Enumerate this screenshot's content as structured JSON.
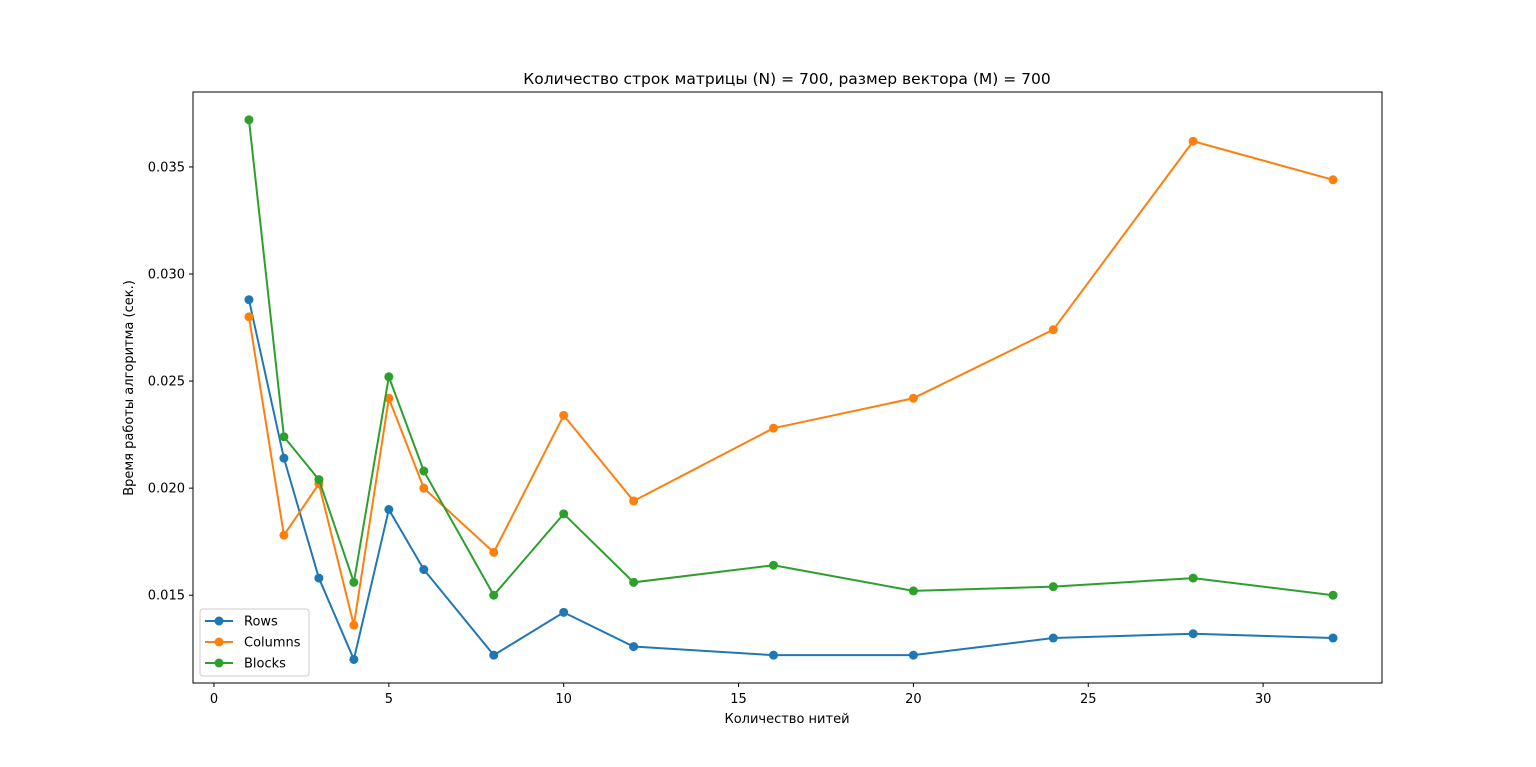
{
  "chart_data": {
    "type": "line",
    "title": "Количество строк матрицы (N) = 700, размер вектора (M) = 700",
    "xlabel": "Количество нитей",
    "ylabel": "Время работы алгоритма (сек.)",
    "xlim": [
      -0.6,
      33.4
    ],
    "ylim": [
      0.0109,
      0.0385
    ],
    "xticks": [
      0,
      5,
      10,
      15,
      20,
      25,
      30
    ],
    "xtick_labels": [
      "0",
      "5",
      "10",
      "15",
      "20",
      "25",
      "30"
    ],
    "yticks": [
      0.015,
      0.02,
      0.025,
      0.03,
      0.035
    ],
    "ytick_labels": [
      "0.015",
      "0.020",
      "0.025",
      "0.030",
      "0.035"
    ],
    "grid": false,
    "legend_position": "lower-left",
    "x": [
      1,
      2,
      3,
      4,
      5,
      6,
      8,
      10,
      12,
      16,
      20,
      24,
      28,
      32
    ],
    "series": [
      {
        "name": "Rows",
        "color": "#1f77b4",
        "values": [
          0.0288,
          0.0214,
          0.0158,
          0.012,
          0.019,
          0.0162,
          0.0122,
          0.0142,
          0.0126,
          0.0122,
          0.0122,
          0.013,
          0.0132,
          0.013
        ]
      },
      {
        "name": "Columns",
        "color": "#ff7f0e",
        "values": [
          0.028,
          0.0178,
          0.0202,
          0.0136,
          0.0242,
          0.02,
          0.017,
          0.0234,
          0.0194,
          0.0228,
          0.0242,
          0.0274,
          0.0362,
          0.0344
        ]
      },
      {
        "name": "Blocks",
        "color": "#2ca02c",
        "values": [
          0.0372,
          0.0224,
          0.0204,
          0.0156,
          0.0252,
          0.0208,
          0.015,
          0.0188,
          0.0156,
          0.0164,
          0.0152,
          0.0154,
          0.0158,
          0.015
        ]
      }
    ]
  }
}
